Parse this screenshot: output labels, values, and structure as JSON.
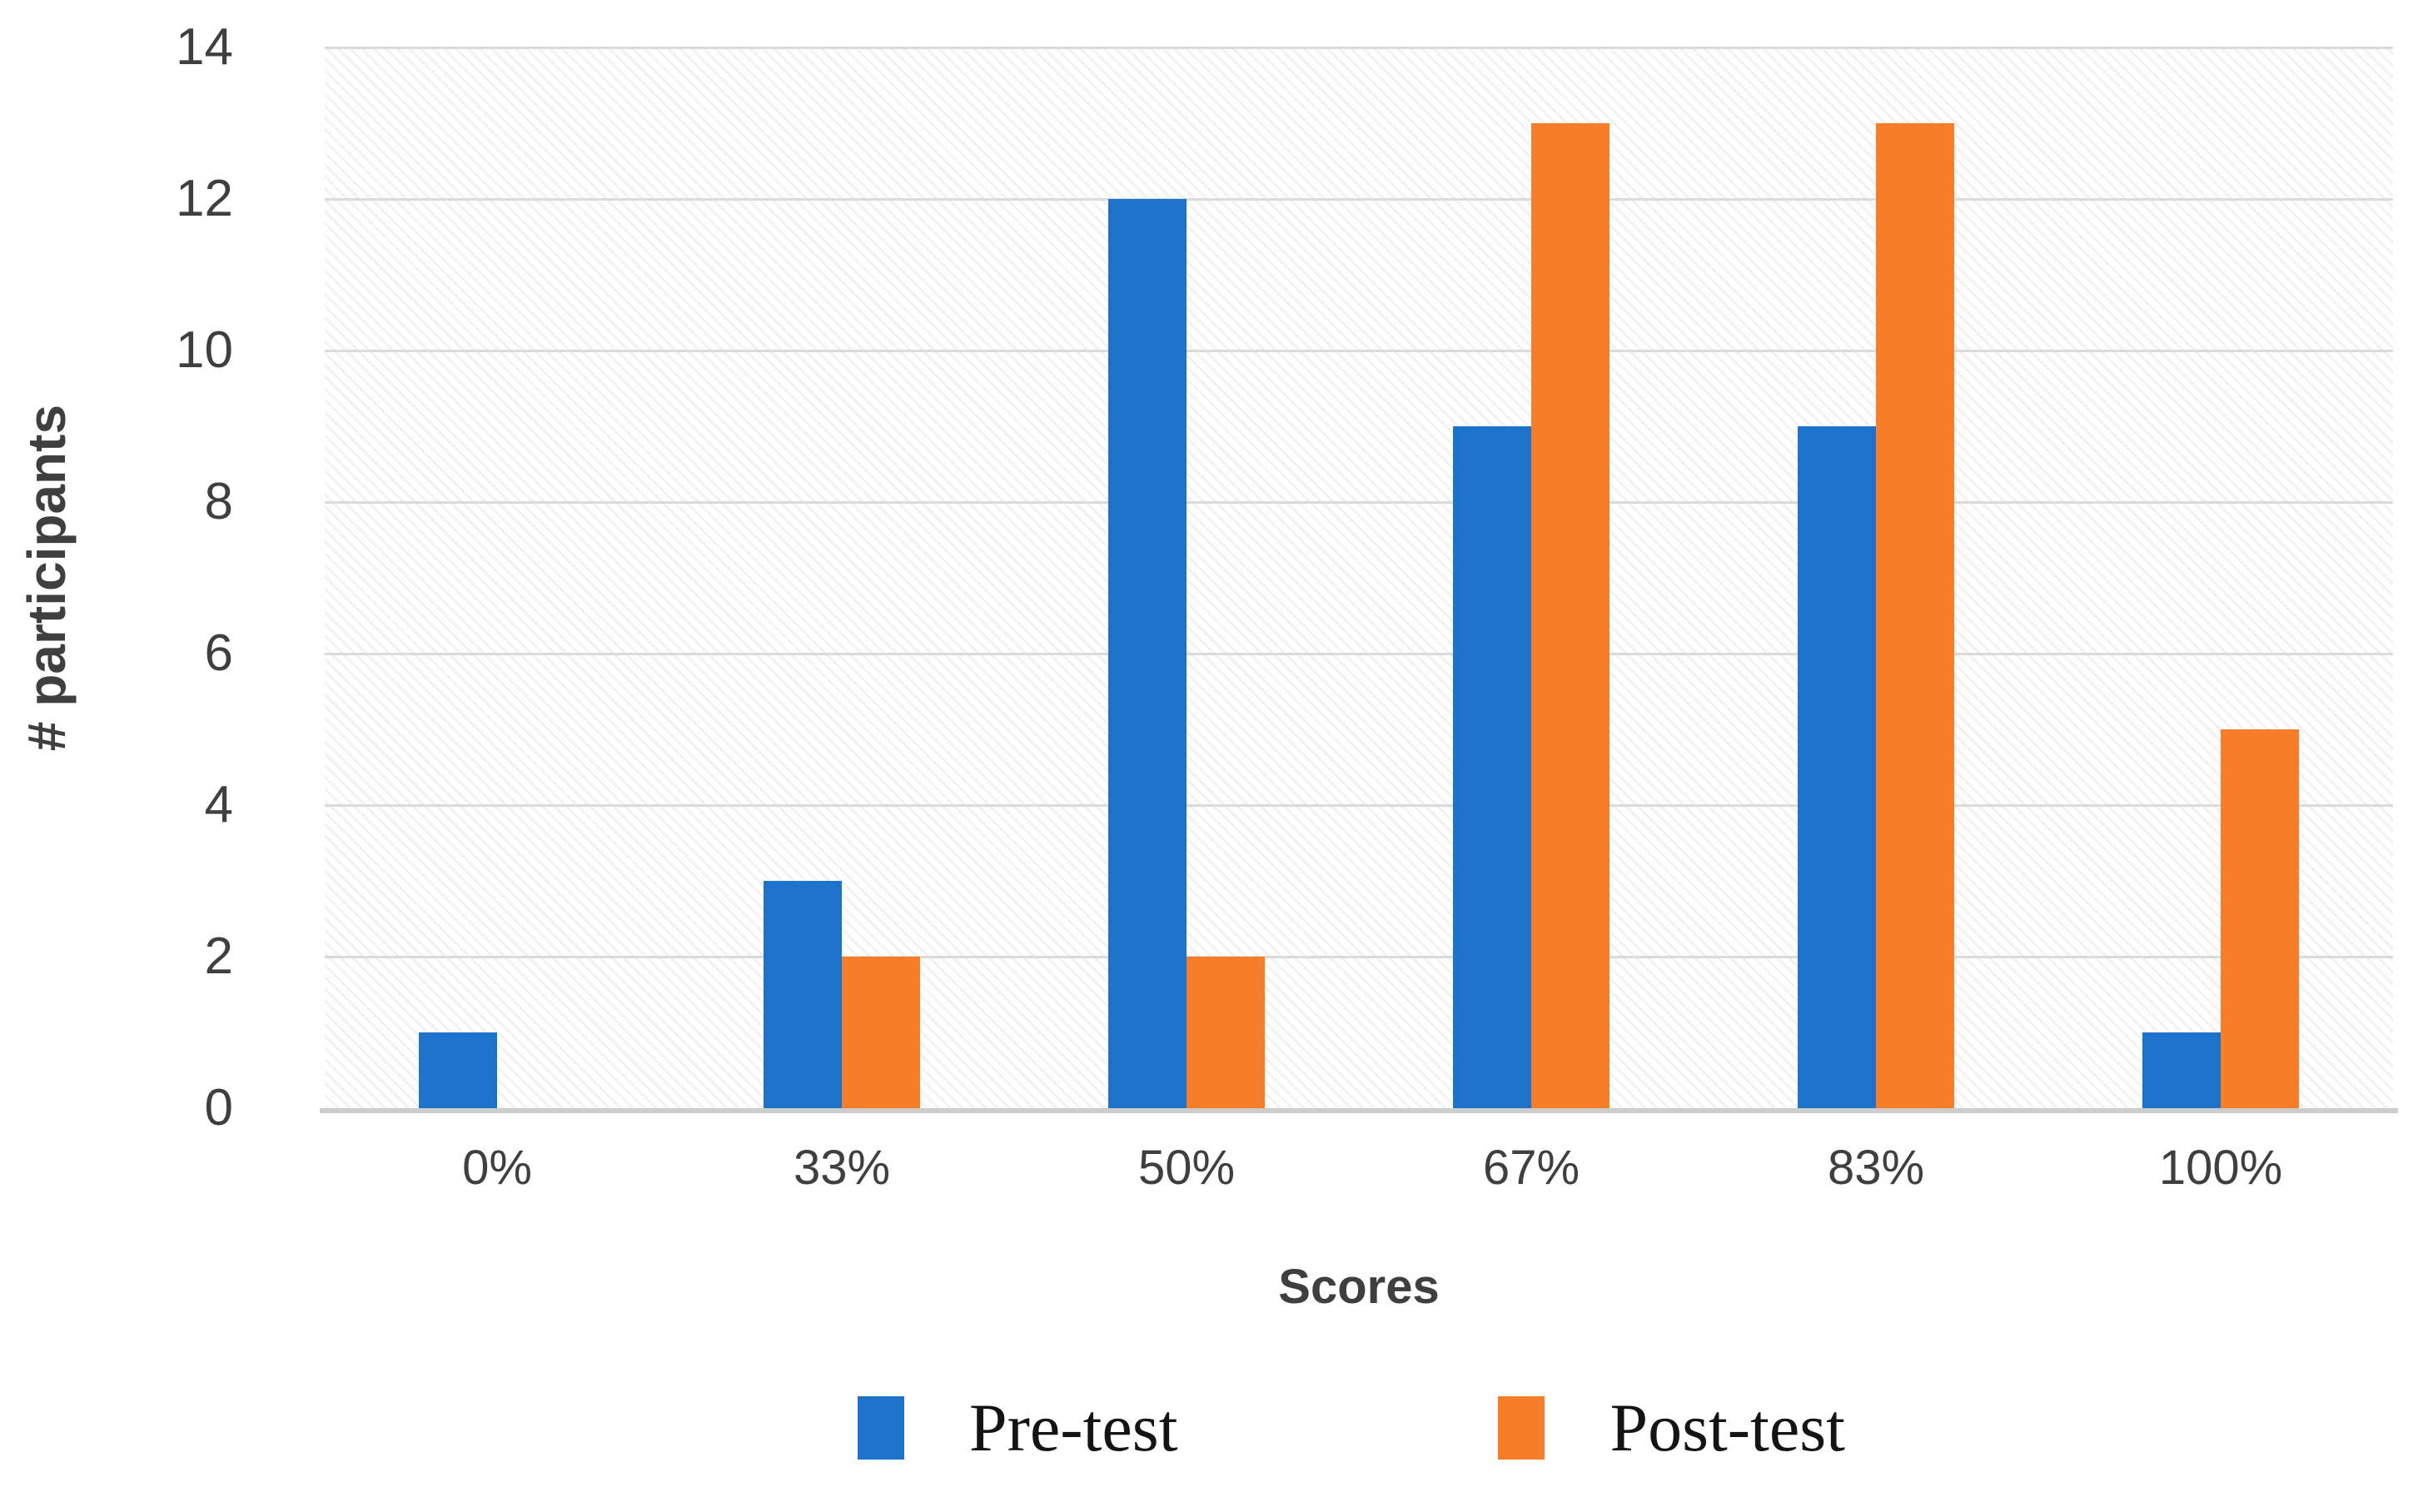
{
  "chart_data": {
    "type": "bar",
    "title": "",
    "categories": [
      "0%",
      "33%",
      "50%",
      "67%",
      "83%",
      "100%"
    ],
    "series": [
      {
        "name": "Pre-test",
        "color": "#1D72C9",
        "values": [
          1,
          3,
          12,
          9,
          9,
          1
        ]
      },
      {
        "name": "Post-test",
        "color": "#F87D28",
        "values": [
          0,
          2,
          2,
          13,
          13,
          5
        ]
      }
    ],
    "xlabel": "Scores",
    "ylabel": "# participants",
    "ylim": [
      0,
      14
    ],
    "yticks": [
      0,
      2,
      4,
      6,
      8,
      10,
      12,
      14
    ],
    "grid": "horizontal",
    "plot_background": "diagonal-hatch",
    "legend_position": "bottom",
    "data_labels": "none"
  },
  "colors": {
    "pre_test": "#1D72C9",
    "post_test": "#F87D28",
    "gridline": "#DBDBDB",
    "axis_line": "#CDCDCD",
    "tick_text": "#3F3F3F",
    "legend_text": "#141414",
    "background": "#FFFFFF"
  }
}
